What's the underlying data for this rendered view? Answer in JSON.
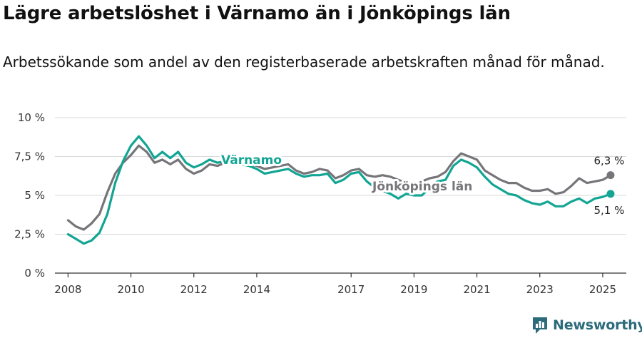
{
  "header": {
    "title": "Lägre arbetslöshet i Värnamo än i Jönköpings län",
    "subtitle": "Arbetssökande som andel av den registerbaserade arbetskraften månad för månad."
  },
  "brand": {
    "name": "Newsworthy",
    "icon": "newsworthy-logo-icon"
  },
  "colors": {
    "varnamo": "#12a594",
    "jonkoping": "#76767a",
    "grid": "#d9d9d9",
    "axis": "#333333"
  },
  "chart_data": {
    "type": "line",
    "yticks": [
      {
        "value": 0,
        "label": "0 %"
      },
      {
        "value": 2.5,
        "label": "2,5 %"
      },
      {
        "value": 5,
        "label": "5 %"
      },
      {
        "value": 7.5,
        "label": "7,5 %"
      },
      {
        "value": 10,
        "label": "10 %"
      }
    ],
    "xticks": [
      "2008",
      "2010",
      "2012",
      "2014",
      "2017",
      "2019",
      "2021",
      "2023",
      "2025"
    ],
    "ylim": [
      0,
      10
    ],
    "xlim": [
      "2007-08",
      "2025-10"
    ],
    "grid": true,
    "series": [
      {
        "name": "Jönköpings län",
        "end_label": "6,3 %",
        "points": [
          [
            "2008-01",
            3.4
          ],
          [
            "2008-04",
            3.0
          ],
          [
            "2008-07",
            2.8
          ],
          [
            "2008-10",
            3.2
          ],
          [
            "2009-01",
            3.8
          ],
          [
            "2009-04",
            5.2
          ],
          [
            "2009-07",
            6.4
          ],
          [
            "2009-10",
            7.1
          ],
          [
            "2010-01",
            7.6
          ],
          [
            "2010-04",
            8.2
          ],
          [
            "2010-07",
            7.8
          ],
          [
            "2010-10",
            7.1
          ],
          [
            "2011-01",
            7.3
          ],
          [
            "2011-04",
            7.0
          ],
          [
            "2011-07",
            7.3
          ],
          [
            "2011-10",
            6.7
          ],
          [
            "2012-01",
            6.4
          ],
          [
            "2012-04",
            6.6
          ],
          [
            "2012-07",
            7.0
          ],
          [
            "2012-10",
            6.9
          ],
          [
            "2013-01",
            7.1
          ],
          [
            "2013-04",
            7.3
          ],
          [
            "2013-07",
            7.2
          ],
          [
            "2013-10",
            7.0
          ],
          [
            "2014-01",
            6.9
          ],
          [
            "2014-04",
            6.7
          ],
          [
            "2014-07",
            6.8
          ],
          [
            "2014-10",
            6.9
          ],
          [
            "2015-01",
            7.0
          ],
          [
            "2015-04",
            6.6
          ],
          [
            "2015-07",
            6.4
          ],
          [
            "2015-10",
            6.5
          ],
          [
            "2016-01",
            6.7
          ],
          [
            "2016-04",
            6.6
          ],
          [
            "2016-07",
            6.1
          ],
          [
            "2016-10",
            6.3
          ],
          [
            "2017-01",
            6.6
          ],
          [
            "2017-04",
            6.7
          ],
          [
            "2017-07",
            6.3
          ],
          [
            "2017-10",
            6.2
          ],
          [
            "2018-01",
            6.3
          ],
          [
            "2018-04",
            6.2
          ],
          [
            "2018-07",
            6.0
          ],
          [
            "2018-10",
            5.8
          ],
          [
            "2019-01",
            5.7
          ],
          [
            "2019-04",
            5.9
          ],
          [
            "2019-07",
            6.1
          ],
          [
            "2019-10",
            6.2
          ],
          [
            "2020-01",
            6.5
          ],
          [
            "2020-04",
            7.2
          ],
          [
            "2020-07",
            7.7
          ],
          [
            "2020-10",
            7.5
          ],
          [
            "2021-01",
            7.3
          ],
          [
            "2021-04",
            6.6
          ],
          [
            "2021-07",
            6.3
          ],
          [
            "2021-10",
            6.0
          ],
          [
            "2022-01",
            5.8
          ],
          [
            "2022-04",
            5.8
          ],
          [
            "2022-07",
            5.5
          ],
          [
            "2022-10",
            5.3
          ],
          [
            "2023-01",
            5.3
          ],
          [
            "2023-04",
            5.4
          ],
          [
            "2023-07",
            5.1
          ],
          [
            "2023-10",
            5.2
          ],
          [
            "2024-01",
            5.6
          ],
          [
            "2024-04",
            6.1
          ],
          [
            "2024-07",
            5.8
          ],
          [
            "2024-10",
            5.9
          ],
          [
            "2025-01",
            6.0
          ],
          [
            "2025-04",
            6.3
          ]
        ]
      },
      {
        "name": "Värnamo",
        "end_label": "5,1 %",
        "points": [
          [
            "2008-01",
            2.5
          ],
          [
            "2008-04",
            2.2
          ],
          [
            "2008-07",
            1.9
          ],
          [
            "2008-10",
            2.1
          ],
          [
            "2009-01",
            2.6
          ],
          [
            "2009-04",
            3.8
          ],
          [
            "2009-07",
            5.8
          ],
          [
            "2009-10",
            7.2
          ],
          [
            "2010-01",
            8.2
          ],
          [
            "2010-04",
            8.8
          ],
          [
            "2010-07",
            8.2
          ],
          [
            "2010-10",
            7.4
          ],
          [
            "2011-01",
            7.8
          ],
          [
            "2011-04",
            7.4
          ],
          [
            "2011-07",
            7.8
          ],
          [
            "2011-10",
            7.1
          ],
          [
            "2012-01",
            6.8
          ],
          [
            "2012-04",
            7.0
          ],
          [
            "2012-07",
            7.3
          ],
          [
            "2012-10",
            7.1
          ],
          [
            "2013-01",
            7.2
          ],
          [
            "2013-04",
            7.1
          ],
          [
            "2013-07",
            7.0
          ],
          [
            "2013-10",
            6.9
          ],
          [
            "2014-01",
            6.7
          ],
          [
            "2014-04",
            6.4
          ],
          [
            "2014-07",
            6.5
          ],
          [
            "2014-10",
            6.6
          ],
          [
            "2015-01",
            6.7
          ],
          [
            "2015-04",
            6.4
          ],
          [
            "2015-07",
            6.2
          ],
          [
            "2015-10",
            6.3
          ],
          [
            "2016-01",
            6.3
          ],
          [
            "2016-04",
            6.4
          ],
          [
            "2016-07",
            5.8
          ],
          [
            "2016-10",
            6.0
          ],
          [
            "2017-01",
            6.4
          ],
          [
            "2017-04",
            6.5
          ],
          [
            "2017-07",
            5.9
          ],
          [
            "2017-10",
            5.5
          ],
          [
            "2018-01",
            5.3
          ],
          [
            "2018-04",
            5.1
          ],
          [
            "2018-07",
            4.8
          ],
          [
            "2018-10",
            5.1
          ],
          [
            "2019-01",
            5.0
          ],
          [
            "2019-04",
            5.0
          ],
          [
            "2019-07",
            5.5
          ],
          [
            "2019-10",
            5.9
          ],
          [
            "2020-01",
            6.0
          ],
          [
            "2020-04",
            6.9
          ],
          [
            "2020-07",
            7.3
          ],
          [
            "2020-10",
            7.1
          ],
          [
            "2021-01",
            6.8
          ],
          [
            "2021-04",
            6.2
          ],
          [
            "2021-07",
            5.7
          ],
          [
            "2021-10",
            5.4
          ],
          [
            "2022-01",
            5.1
          ],
          [
            "2022-04",
            5.0
          ],
          [
            "2022-07",
            4.7
          ],
          [
            "2022-10",
            4.5
          ],
          [
            "2023-01",
            4.4
          ],
          [
            "2023-04",
            4.6
          ],
          [
            "2023-07",
            4.3
          ],
          [
            "2023-10",
            4.3
          ],
          [
            "2024-01",
            4.6
          ],
          [
            "2024-04",
            4.8
          ],
          [
            "2024-07",
            4.5
          ],
          [
            "2024-10",
            4.8
          ],
          [
            "2025-01",
            4.9
          ],
          [
            "2025-04",
            5.1
          ]
        ]
      }
    ]
  }
}
